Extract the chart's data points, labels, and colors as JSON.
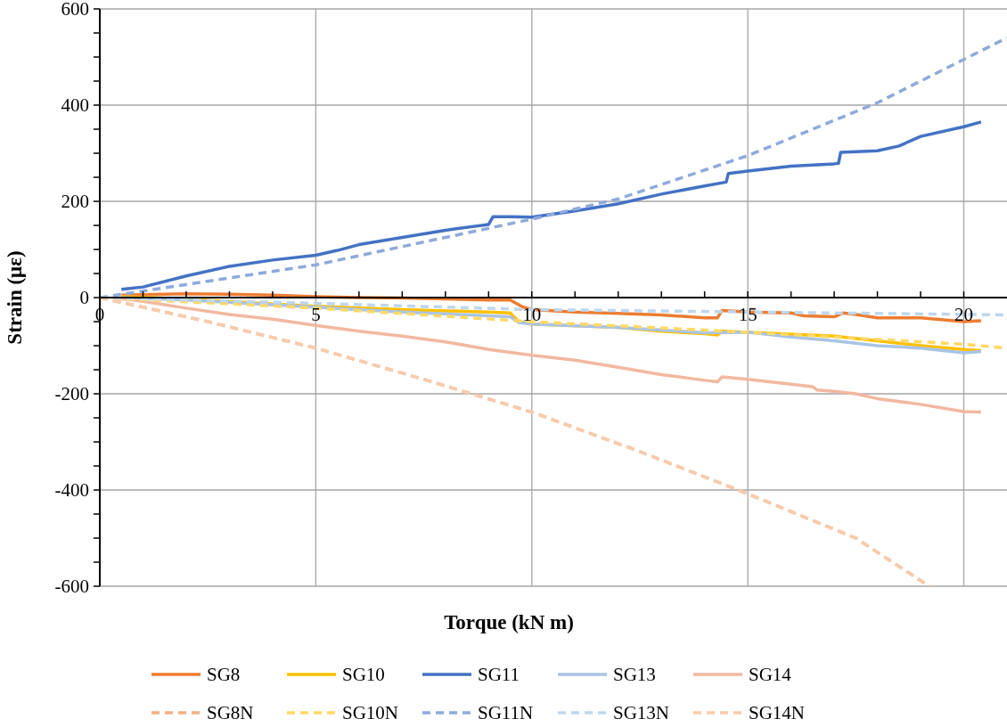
{
  "chart_data": {
    "type": "line",
    "xlabel": "Torque (kN m)",
    "ylabel": "Strain (με)",
    "xlim": [
      0,
      21
    ],
    "ylim": [
      -600,
      600
    ],
    "xticks": [
      0,
      {
        "value": 1,
        "label": null
      },
      {
        "value": 2,
        "label": null
      },
      {
        "value": 3,
        "label": null
      },
      {
        "value": 4,
        "label": null
      },
      5,
      {
        "value": 6,
        "label": null
      },
      {
        "value": 7,
        "label": null
      },
      {
        "value": 8,
        "label": null
      },
      {
        "value": 9,
        "label": null
      },
      10,
      {
        "value": 11,
        "label": null
      },
      {
        "value": 12,
        "label": null
      },
      {
        "value": 13,
        "label": null
      },
      {
        "value": 14,
        "label": null
      },
      15,
      {
        "value": 16,
        "label": null
      },
      {
        "value": 17,
        "label": null
      },
      {
        "value": 18,
        "label": null
      },
      {
        "value": 19,
        "label": null
      },
      20
    ],
    "yticks": [
      -600,
      {
        "value": -550,
        "label": null
      },
      {
        "value": -500,
        "label": null
      },
      {
        "value": -450,
        "label": null
      },
      -400,
      {
        "value": -350,
        "label": null
      },
      {
        "value": -300,
        "label": null
      },
      {
        "value": -250,
        "label": null
      },
      -200,
      {
        "value": -150,
        "label": null
      },
      {
        "value": -100,
        "label": null
      },
      {
        "value": -50,
        "label": null
      },
      0,
      {
        "value": 50,
        "label": null
      },
      {
        "value": 100,
        "label": null
      },
      {
        "value": 150,
        "label": null
      },
      200,
      {
        "value": 250,
        "label": null
      },
      {
        "value": 300,
        "label": null
      },
      {
        "value": 350,
        "label": null
      },
      400,
      {
        "value": 450,
        "label": null
      },
      {
        "value": 500,
        "label": null
      },
      {
        "value": 550,
        "label": null
      },
      600
    ],
    "grid": true,
    "legend": "bottom",
    "marker": "none",
    "series": [
      {
        "name": "SG8",
        "color": "#ed7d31",
        "line_style": "solid",
        "x": [
          0.5,
          2,
          3,
          4,
          5,
          6,
          7,
          8,
          9,
          9.5,
          9.8,
          10,
          11,
          12,
          13,
          14,
          14.3,
          14.4,
          15,
          16,
          16.3,
          17,
          17.2,
          17.5,
          18,
          19,
          20,
          20.4
        ],
        "values": [
          5,
          8,
          7,
          5,
          2,
          0,
          -1,
          -3,
          -5,
          -5,
          -20,
          -25,
          -30,
          -33,
          -36,
          -42,
          -42,
          -27,
          -30,
          -32,
          -38,
          -40,
          -32,
          -35,
          -42,
          -42,
          -50,
          -48
        ]
      },
      {
        "name": "SG10",
        "color": "#ffc000",
        "line_style": "solid",
        "x": [
          0.5,
          2,
          5,
          7,
          9,
          9.5,
          9.7,
          10,
          12,
          13,
          14,
          14.3,
          14.4,
          15,
          17,
          19,
          20,
          20.4
        ],
        "values": [
          2,
          -3,
          -18,
          -25,
          -30,
          -32,
          -50,
          -55,
          -62,
          -70,
          -75,
          -78,
          -70,
          -72,
          -80,
          -100,
          -108,
          -110
        ]
      },
      {
        "name": "SG11",
        "color": "#4472c4",
        "line_style": "solid",
        "x": [
          0.5,
          1,
          2,
          3,
          4,
          5,
          5.5,
          6,
          7,
          8,
          9,
          9.1,
          9.5,
          10,
          11,
          12,
          13,
          14,
          14.5,
          14.55,
          15,
          16,
          17,
          17.1,
          17.15,
          18,
          18.5,
          19,
          20,
          20.4
        ],
        "values": [
          17,
          22,
          45,
          65,
          78,
          88,
          98,
          110,
          125,
          140,
          152,
          168,
          168,
          167,
          180,
          195,
          215,
          232,
          240,
          258,
          263,
          273,
          278,
          279,
          302,
          305,
          315,
          335,
          355,
          365
        ]
      },
      {
        "name": "SG13",
        "color": "#a9c4e6",
        "line_style": "solid",
        "x": [
          0.5,
          2,
          5,
          7,
          9,
          9.5,
          9.7,
          10,
          12,
          14,
          15,
          16,
          17,
          18,
          19,
          20,
          20.4
        ],
        "values": [
          0,
          -5,
          -20,
          -30,
          -38,
          -40,
          -52,
          -55,
          -62,
          -73,
          -72,
          -82,
          -90,
          -100,
          -105,
          -115,
          -112
        ]
      },
      {
        "name": "SG14",
        "color": "#f2b8a0",
        "line_style": "solid",
        "x": [
          0.3,
          1,
          2,
          3,
          4,
          5,
          6,
          7,
          8,
          9,
          10,
          11,
          12,
          13,
          14,
          14.3,
          14.4,
          15,
          16,
          16.5,
          16.6,
          17,
          17.5,
          18,
          19,
          20,
          20.4
        ],
        "values": [
          0,
          -8,
          -22,
          -35,
          -45,
          -58,
          -70,
          -80,
          -92,
          -108,
          -120,
          -130,
          -145,
          -160,
          -172,
          -175,
          -165,
          -170,
          -180,
          -185,
          -192,
          -195,
          -200,
          -210,
          -222,
          -237,
          -238
        ]
      },
      {
        "name": "SG8N",
        "color": "#f4b183",
        "line_style": "dashed",
        "x": [
          0,
          2.5,
          5,
          7.5,
          10,
          12.5,
          15,
          17.5,
          19.2
        ],
        "values": [
          0,
          -50,
          -105,
          -170,
          -238,
          -320,
          -408,
          -500,
          -600
        ]
      },
      {
        "name": "SG10N",
        "color": "#ffd966",
        "line_style": "dashed",
        "x": [
          0,
          5,
          10,
          15,
          20,
          21
        ],
        "values": [
          0,
          -22,
          -50,
          -72,
          -97,
          -105
        ]
      },
      {
        "name": "SG11N",
        "color": "#8faadc",
        "line_style": "dashed",
        "x": [
          0,
          5,
          10,
          12,
          15,
          18,
          20,
          21
        ],
        "values": [
          0,
          68,
          163,
          205,
          295,
          405,
          495,
          540
        ]
      },
      {
        "name": "SG13N",
        "color": "#bdd7ee",
        "line_style": "dashed",
        "x": [
          0,
          5,
          10,
          15,
          20,
          21
        ],
        "values": [
          0,
          -12,
          -25,
          -30,
          -35,
          -36
        ]
      },
      {
        "name": "SG14N",
        "color": "#f8cbad",
        "line_style": "dashed",
        "x": [
          0,
          2.5,
          5,
          7.5,
          10,
          12.5,
          15,
          17.5,
          19.2
        ],
        "values": [
          0,
          -50,
          -105,
          -170,
          -238,
          -320,
          -408,
          -500,
          -600
        ]
      }
    ]
  }
}
